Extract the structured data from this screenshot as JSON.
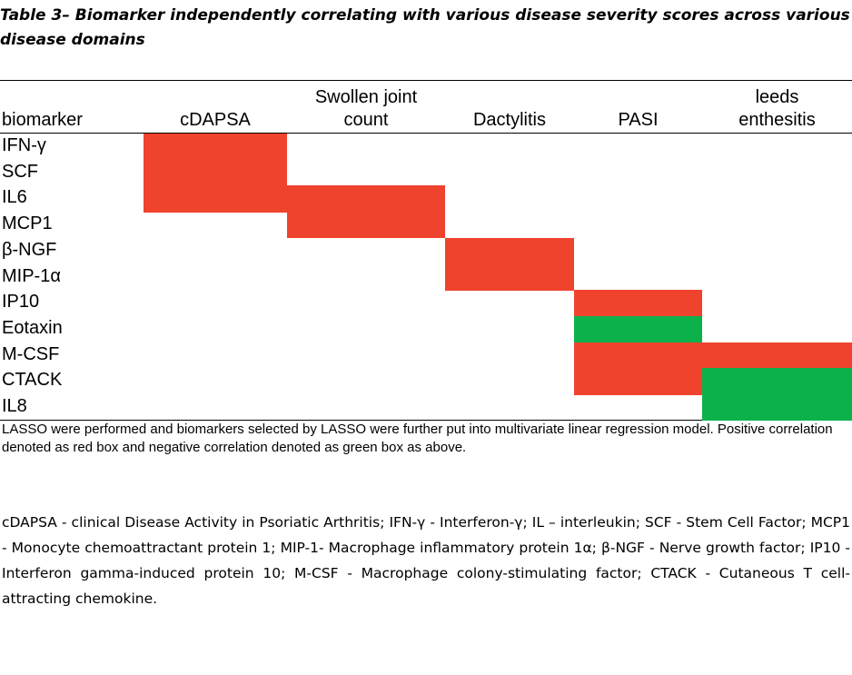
{
  "caption": "Table 3– Biomarker independently correlating with various disease severity scores across various disease domains",
  "colors": {
    "positive": "#f0432e",
    "negative": "#0db14b"
  },
  "table": {
    "row_header": "biomarker",
    "columns": [
      {
        "line1": "",
        "line2": "cDAPSA"
      },
      {
        "line1": "Swollen joint",
        "line2": "count"
      },
      {
        "line1": "",
        "line2": "Dactylitis"
      },
      {
        "line1": "",
        "line2": "PASI"
      },
      {
        "line1": "leeds",
        "line2": "enthesitis"
      }
    ],
    "rows": [
      {
        "label": "IFN-γ",
        "cells": [
          "positive",
          "",
          "",
          "",
          ""
        ]
      },
      {
        "label": "SCF",
        "cells": [
          "positive",
          "",
          "",
          "",
          ""
        ]
      },
      {
        "label": "IL6",
        "cells": [
          "positive",
          "positive",
          "",
          "",
          ""
        ]
      },
      {
        "label": "MCP1",
        "cells": [
          "",
          "positive",
          "",
          "",
          ""
        ]
      },
      {
        "label": "β-NGF",
        "cells": [
          "",
          "",
          "positive",
          "",
          ""
        ]
      },
      {
        "label": "MIP-1α",
        "cells": [
          "",
          "",
          "positive",
          "",
          ""
        ]
      },
      {
        "label": "IP10",
        "cells": [
          "",
          "",
          "",
          "positive",
          ""
        ]
      },
      {
        "label": "Eotaxin",
        "cells": [
          "",
          "",
          "",
          "negative",
          ""
        ]
      },
      {
        "label": "M-CSF",
        "cells": [
          "",
          "",
          "",
          "positive",
          "positive"
        ]
      },
      {
        "label": "CTACK",
        "cells": [
          "",
          "",
          "",
          "positive",
          "negative"
        ]
      },
      {
        "label": "IL8",
        "cells": [
          "",
          "",
          "",
          "",
          "negative"
        ]
      }
    ]
  },
  "note": "LASSO were performed and biomarkers selected by LASSO were further put into multivariate linear regression model. Positive correlation denoted as red box and negative correlation denoted as green box as above.",
  "abbreviations": "cDAPSA - clinical Disease Activity in Psoriatic Arthritis; IFN-γ - Interferon-γ; IL – interleukin; SCF - Stem Cell Factor; MCP1 - Monocyte chemoattractant protein 1; MIP-1- Macrophage inflammatory protein 1α; β-NGF - Nerve growth factor; IP10 - Interferon gamma-induced protein 10; M-CSF - Macrophage colony-stimulating factor; CTACK - Cutaneous T cell-attracting chemokine."
}
